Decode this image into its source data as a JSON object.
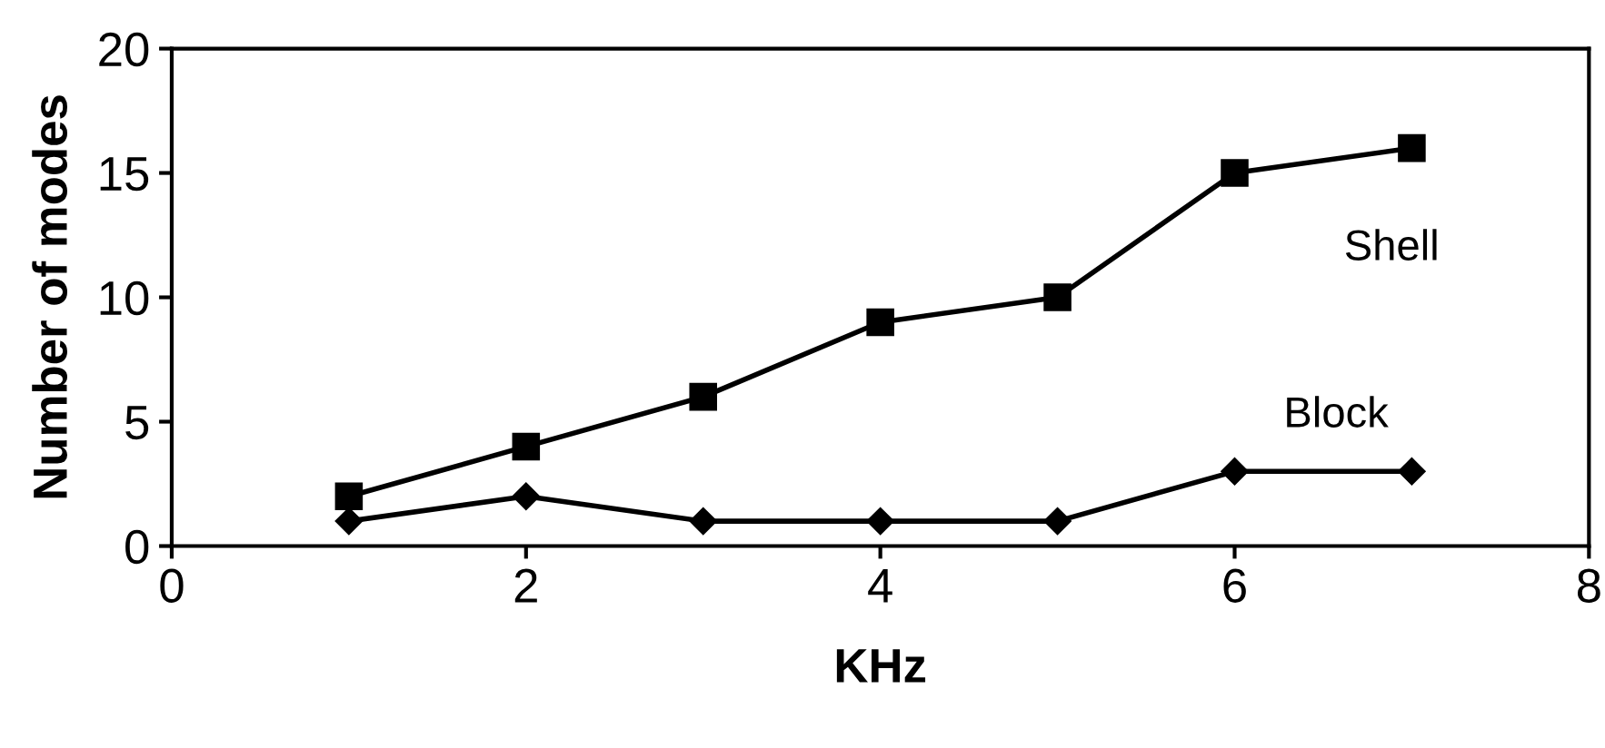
{
  "chart_data": {
    "type": "line",
    "xlabel": "KHz",
    "ylabel": "Number of modes",
    "xlim": [
      0,
      8
    ],
    "xticks": [
      0,
      2,
      4,
      6,
      8
    ],
    "ylim": [
      0,
      20
    ],
    "yticks": [
      0,
      5,
      10,
      15,
      20
    ],
    "grid": false,
    "legend": false,
    "line_style": "solid",
    "series": [
      {
        "name": "Shell",
        "color": "#000000",
        "marker": "square",
        "x": [
          1,
          2,
          3,
          4,
          5,
          6,
          7
        ],
        "values": [
          2,
          4,
          6,
          9,
          10,
          15,
          16
        ]
      },
      {
        "name": "Block",
        "color": "#000000",
        "marker": "diamond",
        "x": [
          1,
          2,
          3,
          4,
          5,
          6,
          7
        ],
        "values": [
          1,
          2,
          1,
          1,
          1,
          3,
          3
        ]
      }
    ]
  }
}
